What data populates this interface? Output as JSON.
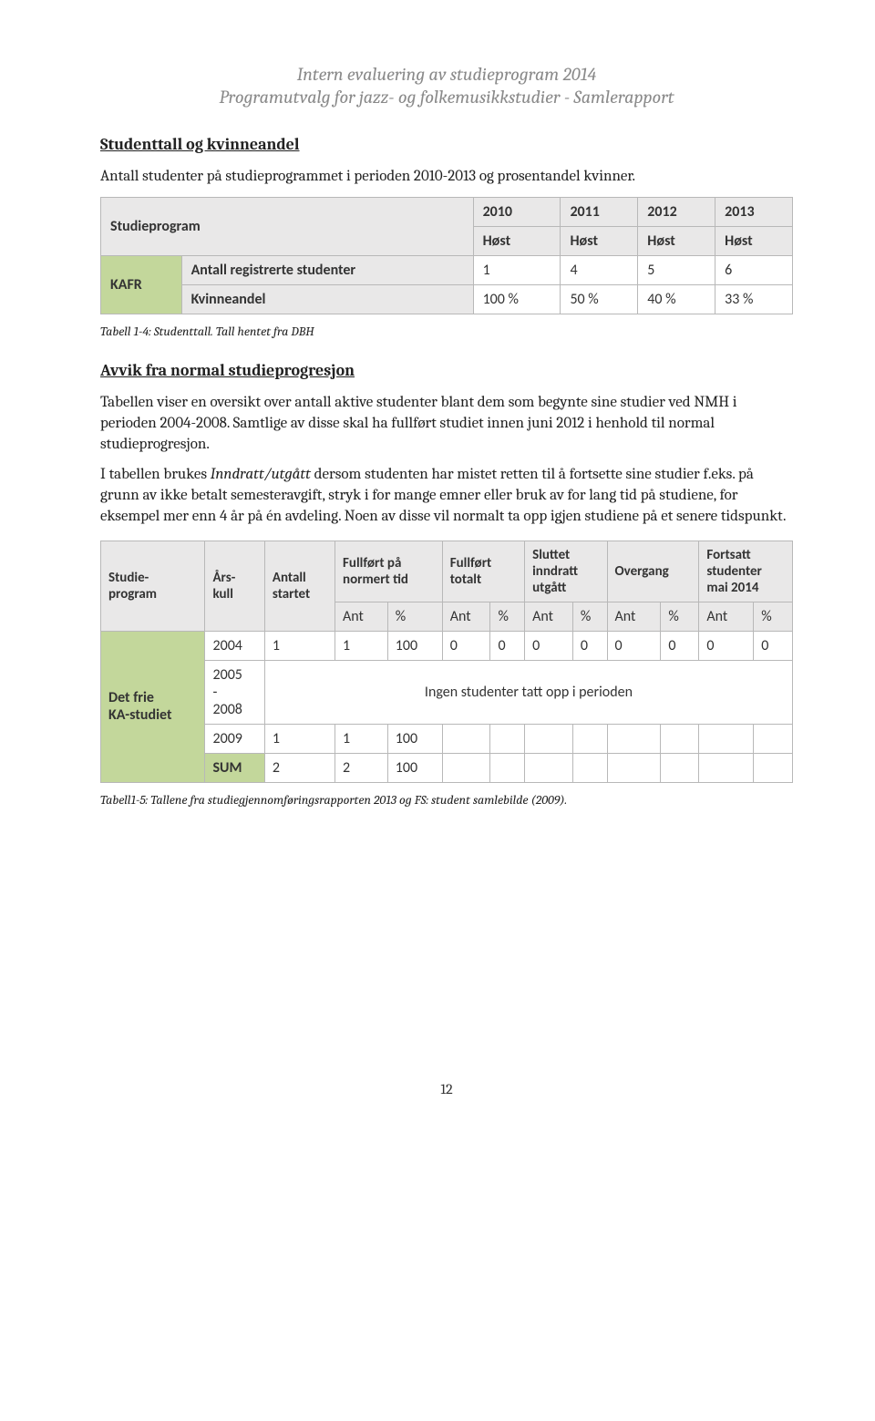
{
  "header": {
    "line1": "Intern evaluering av studieprogram 2014",
    "line2": "Programutvalg for jazz- og folkemusikkstudier - Samlerapport"
  },
  "section1": {
    "title": "Studenttall og kvinneandel",
    "intro": "Antall studenter på studieprogrammet i perioden 2010-2013 og prosentandel kvinner."
  },
  "table1": {
    "col_program": "Studieprogram",
    "years": [
      "2010",
      "2011",
      "2012",
      "2013"
    ],
    "term": "Høst",
    "program_code": "KAFR",
    "row_registered_label": "Antall registrerte studenter",
    "registered_values": [
      "1",
      "4",
      "5",
      "6"
    ],
    "row_women_label": "Kvinneandel",
    "women_values": [
      "100 %",
      "50 %",
      "40 %",
      "33 %"
    ],
    "caption": "Tabell 1-4: Studenttall. Tall hentet fra DBH"
  },
  "section2": {
    "title": "Avvik fra normal studieprogresjon",
    "para1": "Tabellen viser en oversikt over antall aktive studenter blant dem som begynte sine studier ved NMH i perioden 2004-2008. Samtlige av disse skal ha fullført studiet innen juni 2012 i henhold til normal studieprogresjon.",
    "para2_pre": "I tabellen brukes ",
    "para2_italic": "Inndratt/utgått",
    "para2_post": " dersom studenten har mistet retten til å fortsette sine studier f.eks. på grunn av ikke betalt semesteravgift, stryk i for mange emner eller bruk av for lang tid på studiene, for eksempel mer enn 4 år på én avdeling. Noen av disse vil normalt ta opp igjen studiene på et senere tidspunkt."
  },
  "table2": {
    "headers": {
      "program": "Studie-\nprogram",
      "cohort": "Års-\nkull",
      "started": "Antall\nstartet",
      "completed_norm": "Fullført på\nnormert tid",
      "completed_total": "Fullført\ntotalt",
      "quit": "Sluttet\ninndratt\nutgått",
      "transfer": "Overgang",
      "continuing": "Fortsatt\nstudenter\nmai 2014"
    },
    "sub_ant": "Ant",
    "sub_pct": "%",
    "program_label": "Det frie\nKA-studiet",
    "rows": [
      {
        "year": "2004",
        "started": "1",
        "cells": [
          "1",
          "100",
          "0",
          "0",
          "0",
          "0",
          "0",
          "0",
          "0",
          "0"
        ]
      },
      {
        "year": "2005\n-\n2008",
        "merged_text": "Ingen studenter tatt opp i perioden"
      },
      {
        "year": "2009",
        "started": "1",
        "cells": [
          "1",
          "100",
          "",
          "",
          "",
          "",
          "",
          "",
          "",
          ""
        ]
      },
      {
        "year": "SUM",
        "started": "2",
        "cells": [
          "2",
          "100",
          "",
          "",
          "",
          "",
          "",
          "",
          "",
          ""
        ],
        "sum": true
      }
    ],
    "caption": "Tabell1-5: Tallene fra studiegjennomføringsrapporten 2013 og FS: student samlebilde (2009)."
  },
  "page_number": "12"
}
